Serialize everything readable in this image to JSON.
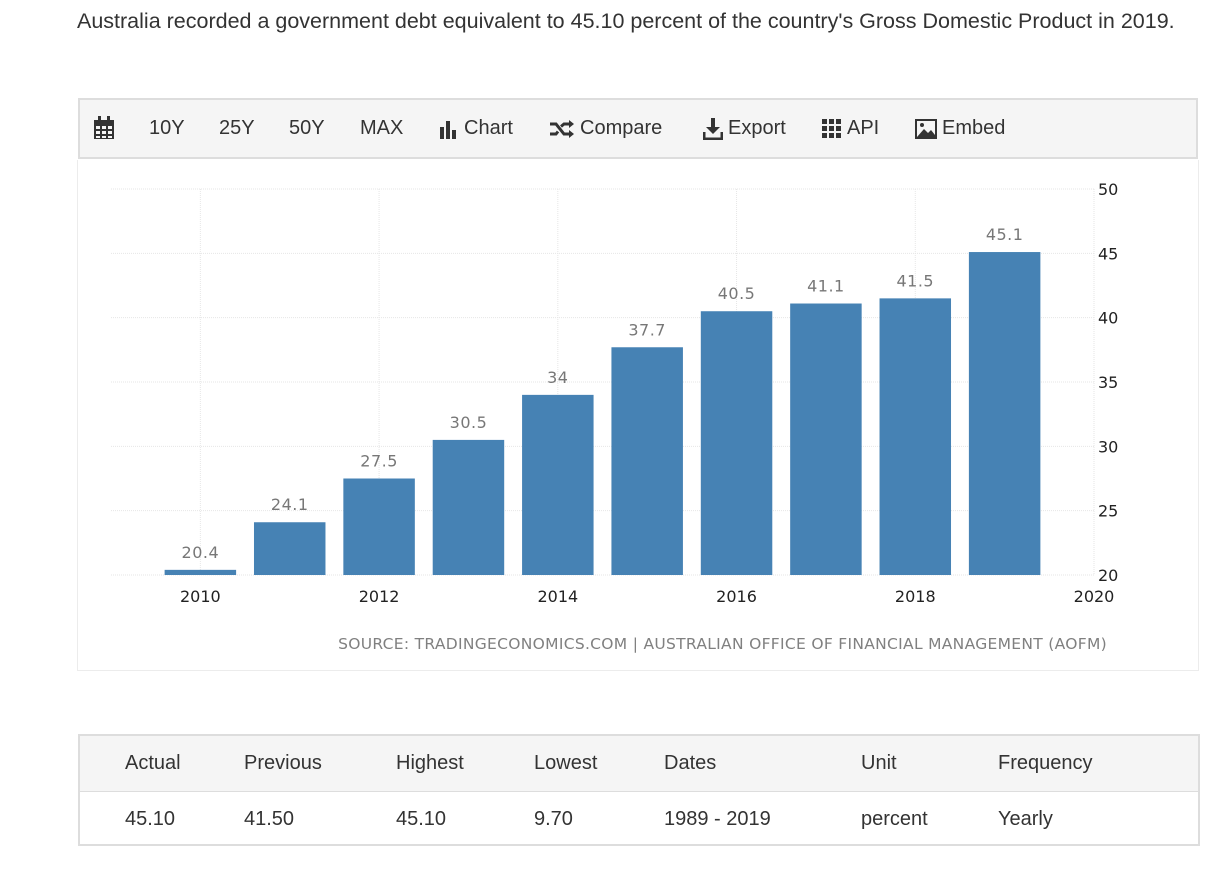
{
  "intro_text": "Australia recorded a government debt equivalent to 45.10 percent of the country's Gross Domestic Product in 2019.",
  "toolbar": {
    "calendar_icon": "calendar-icon",
    "btn_10y": "10Y",
    "btn_25y": "25Y",
    "btn_50y": "50Y",
    "btn_max": "MAX",
    "chart_label": "Chart",
    "compare_label": "Compare",
    "export_label": "Export",
    "api_label": "API",
    "embed_label": "Embed"
  },
  "chart_data": {
    "type": "bar",
    "x": [
      2010,
      2011,
      2012,
      2013,
      2014,
      2015,
      2016,
      2017,
      2018,
      2019
    ],
    "values": [
      20.4,
      24.1,
      27.5,
      30.5,
      34,
      37.7,
      40.5,
      41.1,
      41.5,
      45.1
    ],
    "value_labels": [
      "20.4",
      "24.1",
      "27.5",
      "30.5",
      "34",
      "37.7",
      "40.5",
      "41.1",
      "41.5",
      "45.1"
    ],
    "x_ticks": [
      "2010",
      "2012",
      "2014",
      "2016",
      "2018",
      "2020"
    ],
    "x_tick_values": [
      2010,
      2012,
      2014,
      2016,
      2018,
      2020
    ],
    "y_ticks": [
      "20",
      "25",
      "30",
      "35",
      "40",
      "45",
      "50"
    ],
    "y_tick_values": [
      20,
      25,
      30,
      35,
      40,
      45,
      50
    ],
    "ylim": [
      20,
      50
    ],
    "xlim": [
      2009,
      2020
    ],
    "y_axis_side": "right",
    "grid": true,
    "bar_color": "#4682b4",
    "source": "SOURCE: TRADINGECONOMICS.COM | AUSTRALIAN OFFICE OF FINANCIAL MANAGEMENT (AOFM)"
  },
  "stats": {
    "headers": [
      "Actual",
      "Previous",
      "Highest",
      "Lowest",
      "Dates",
      "Unit",
      "Frequency"
    ],
    "values": [
      "45.10",
      "41.50",
      "45.10",
      "9.70",
      "1989 - 2019",
      "percent",
      "Yearly"
    ]
  }
}
